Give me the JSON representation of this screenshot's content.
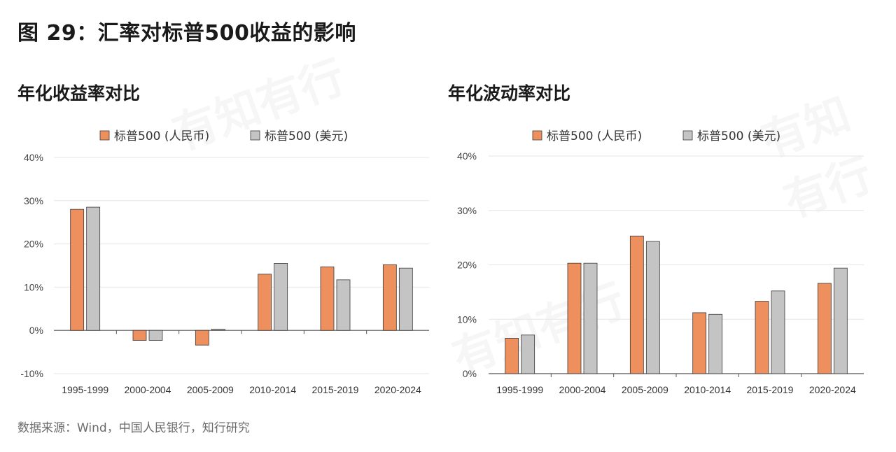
{
  "page": {
    "title": "图 29：汇率对标普500收益的影响",
    "source": "数据来源：Wind，中国人民银行，知行研究",
    "watermark": "有知有行"
  },
  "colors": {
    "cny": "#EE8F5E",
    "usd": "#C4C4C4",
    "edge": "#3a3a3a",
    "grid": "#e6e6e6",
    "axis": "#555555"
  },
  "chart_data": [
    {
      "type": "bar",
      "title": "年化收益率对比",
      "categories": [
        "1995-1999",
        "2000-2004",
        "2005-2009",
        "2010-2014",
        "2015-2019",
        "2020-2024"
      ],
      "series": [
        {
          "name": "标普500 (人民币)",
          "values": [
            28.0,
            -2.3,
            -3.4,
            13.0,
            14.7,
            15.2
          ]
        },
        {
          "name": "标普500 (美元)",
          "values": [
            28.5,
            -2.3,
            0.3,
            15.5,
            11.7,
            14.4
          ]
        }
      ],
      "ylim": [
        -10,
        40
      ],
      "yticks": [
        "40%",
        "30%",
        "20%",
        "10%",
        "0%",
        "-10%"
      ],
      "legend": "top",
      "grid": true
    },
    {
      "type": "bar",
      "title": "年化波动率对比",
      "categories": [
        "1995-1999",
        "2000-2004",
        "2005-2009",
        "2010-2014",
        "2015-2019",
        "2020-2024"
      ],
      "series": [
        {
          "name": "标普500 (人民币)",
          "values": [
            6.5,
            20.3,
            25.3,
            11.2,
            13.3,
            16.6
          ]
        },
        {
          "name": "标普500 (美元)",
          "values": [
            7.1,
            20.3,
            24.3,
            10.9,
            15.2,
            19.4
          ]
        }
      ],
      "ylim": [
        0,
        40
      ],
      "yticks": [
        "40%",
        "30%",
        "20%",
        "10%",
        "0%"
      ],
      "legend": "top",
      "grid": true
    }
  ]
}
